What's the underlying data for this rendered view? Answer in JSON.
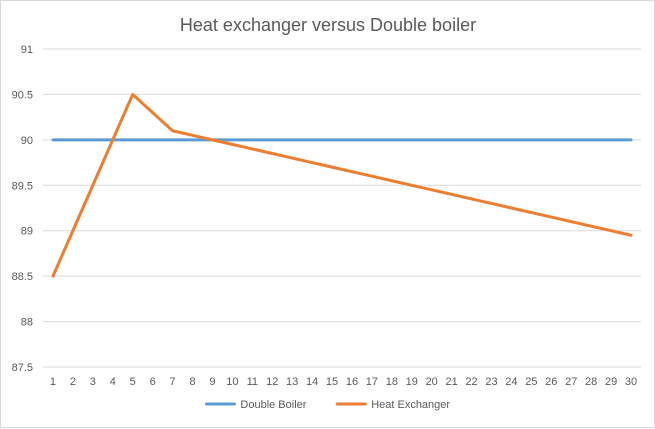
{
  "chart_data": {
    "type": "line",
    "title": "Heat exchanger versus Double boiler",
    "xlabel": "",
    "ylabel": "",
    "x": [
      1,
      2,
      3,
      4,
      5,
      6,
      7,
      8,
      9,
      10,
      11,
      12,
      13,
      14,
      15,
      16,
      17,
      18,
      19,
      20,
      21,
      22,
      23,
      24,
      25,
      26,
      27,
      28,
      29,
      30
    ],
    "ylim": [
      87.5,
      91
    ],
    "yticks": [
      87.5,
      88,
      88.5,
      89,
      89.5,
      90,
      90.5,
      91
    ],
    "ytick_labels": [
      "87.5",
      "88",
      "88.5",
      "89",
      "89.5",
      "90",
      "90.5",
      "91"
    ],
    "grid": true,
    "legend_position": "bottom",
    "series": [
      {
        "name": "Double Boiler",
        "color": "#5b9bd5",
        "values": [
          90,
          90,
          90,
          90,
          90,
          90,
          90,
          90,
          90,
          90,
          90,
          90,
          90,
          90,
          90,
          90,
          90,
          90,
          90,
          90,
          90,
          90,
          90,
          90,
          90,
          90,
          90,
          90,
          90,
          90
        ]
      },
      {
        "name": "Heat Exchanger",
        "color": "#ed7d31",
        "values": [
          88.5,
          89,
          89.5,
          90,
          90.5,
          90.3,
          90.1,
          90.05,
          90,
          89.95,
          89.9,
          89.85,
          89.8,
          89.75,
          89.7,
          89.65,
          89.6,
          89.55,
          89.5,
          89.45,
          89.4,
          89.35,
          89.3,
          89.25,
          89.2,
          89.15,
          89.1,
          89.05,
          89,
          88.95
        ]
      }
    ]
  }
}
